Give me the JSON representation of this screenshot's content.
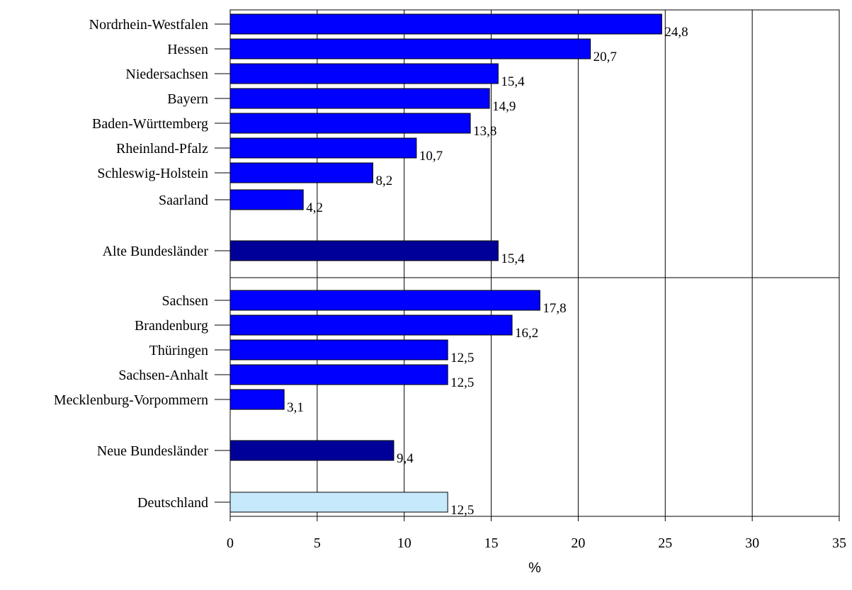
{
  "chart_data": {
    "type": "bar",
    "orientation": "horizontal",
    "xlabel": "%",
    "ylabel": "",
    "xlim": [
      0,
      35
    ],
    "x_ticks": [
      0,
      5,
      10,
      15,
      20,
      25,
      30,
      35
    ],
    "grid": "vertical lines at each tick",
    "categories": [
      "Nordrhein-Westfalen",
      "Hessen",
      "Niedersachsen",
      "Bayern",
      "Baden-Württemberg",
      "Rheinland-Pfalz",
      "Schleswig-Holstein",
      "Saarland",
      "Alte Bundesländer",
      "Sachsen",
      "Brandenburg",
      "Thüringen",
      "Sachsen-Anhalt",
      "Mecklenburg-Vorpommern",
      "Neue Bundesländer",
      "Deutschland"
    ],
    "values": [
      24.8,
      20.7,
      15.4,
      14.9,
      13.8,
      10.7,
      8.2,
      4.2,
      15.4,
      17.8,
      16.2,
      12.5,
      12.5,
      3.1,
      9.4,
      12.5
    ],
    "value_labels": [
      "24,8",
      "20,7",
      "15,4",
      "14,9",
      "13,8",
      "10,7",
      "8,2",
      "4,2",
      "15,4",
      "17,8",
      "16,2",
      "12,5",
      "12,5",
      "3,1",
      "9,4",
      "12,5"
    ],
    "bar_kinds": [
      "state",
      "state",
      "state",
      "state",
      "state",
      "state",
      "state",
      "state",
      "total",
      "state",
      "state",
      "state",
      "state",
      "state",
      "total",
      "national"
    ],
    "colors": {
      "state": "#0000ff",
      "total": "#000099",
      "national": "#c6e9fb",
      "grid": "#000000",
      "text": "#000000"
    }
  }
}
